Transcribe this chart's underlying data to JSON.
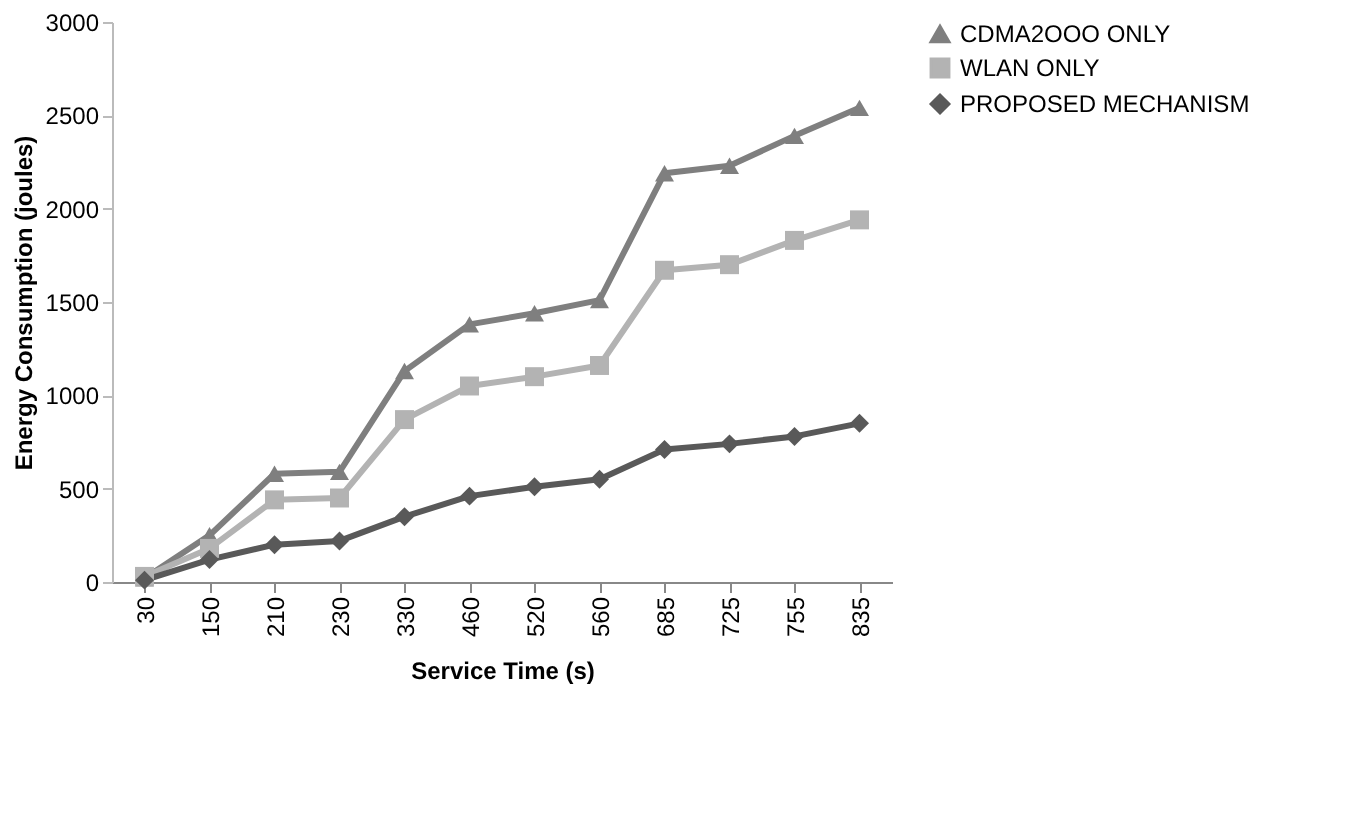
{
  "chart_data": {
    "type": "line",
    "xlabel": "Service Time (s)",
    "ylabel": "Energy Consumption (joules)",
    "categories": [
      "30",
      "150",
      "210",
      "230",
      "330",
      "460",
      "520",
      "560",
      "685",
      "725",
      "755",
      "835"
    ],
    "series": [
      {
        "name": "CDMA2OOO ONLY",
        "color": "#7f7f7f",
        "marker": "triangle",
        "values": [
          20,
          250,
          580,
          590,
          1130,
          1380,
          1440,
          1510,
          2190,
          2230,
          2390,
          2540
        ]
      },
      {
        "name": "WLAN ONLY",
        "color": "#b3b3b3",
        "marker": "square",
        "values": [
          30,
          180,
          440,
          450,
          870,
          1050,
          1100,
          1160,
          1670,
          1700,
          1830,
          1940
        ]
      },
      {
        "name": "PROPOSED MECHANISM",
        "color": "#595959",
        "marker": "diamond",
        "values": [
          10,
          120,
          200,
          220,
          350,
          460,
          510,
          550,
          710,
          740,
          780,
          850
        ]
      }
    ],
    "ylim": [
      0,
      3000
    ],
    "yticks": [
      0,
      500,
      1000,
      1500,
      2000,
      2500,
      3000
    ],
    "grid": false,
    "legend": "right",
    "line_style": "solid"
  }
}
